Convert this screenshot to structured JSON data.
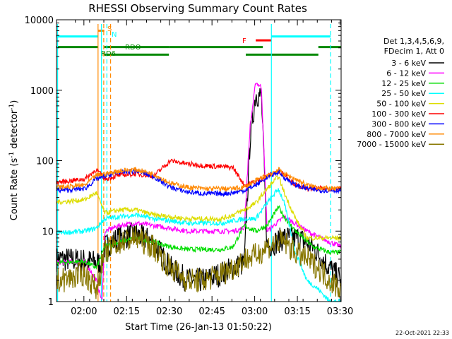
{
  "chart_data": {
    "type": "line",
    "title": "RHESSI Observing Summary Count Rates",
    "xlabel": "Start Time (26-Jan-13 01:50:22)",
    "ylabel_main": "Count Rate (s",
    "ylabel_sup1": "-1",
    "ylabel_mid": " detector",
    "ylabel_sup2": "-1",
    "ylabel_end": ")",
    "yscale": "log",
    "ylim": [
      1,
      10000
    ],
    "xlim_min": [
      0,
      100
    ],
    "y_ticks": [
      {
        "v": 1,
        "label": "1"
      },
      {
        "v": 10,
        "label": "10"
      },
      {
        "v": 100,
        "label": "100"
      },
      {
        "v": 1000,
        "label": "1000"
      },
      {
        "v": 10000,
        "label": "10000"
      }
    ],
    "x_ticks": [
      {
        "t": 9.63,
        "label": "02:00"
      },
      {
        "t": 24.63,
        "label": "02:15"
      },
      {
        "t": 39.63,
        "label": "02:30"
      },
      {
        "t": 54.63,
        "label": "02:45"
      },
      {
        "t": 69.63,
        "label": "03:00"
      },
      {
        "t": 84.63,
        "label": "03:15"
      },
      {
        "t": 99.63,
        "label": "03:30"
      }
    ],
    "legend_header": [
      "Det 1,3,4,5,6,9,",
      "FDecim 1, Att 0"
    ],
    "series": [
      {
        "name": "3 - 6 keV",
        "color": "#000000",
        "gap": 1,
        "pts": [
          [
            2,
            4
          ],
          [
            10,
            3.8
          ],
          [
            16,
            3.5
          ],
          [
            17,
            6
          ],
          [
            22,
            8
          ],
          [
            28,
            9
          ],
          [
            34,
            7
          ],
          [
            40,
            3
          ],
          [
            46,
            2
          ],
          [
            52,
            2
          ],
          [
            58,
            2.5
          ],
          [
            62,
            3
          ],
          [
            66,
            3.5
          ],
          [
            68,
            200
          ],
          [
            70,
            900
          ],
          [
            72,
            800
          ],
          [
            74,
            6
          ],
          [
            80,
            8
          ],
          [
            85,
            8
          ],
          [
            90,
            6
          ],
          [
            96,
            3
          ],
          [
            100,
            2
          ]
        ]
      },
      {
        "name": "6 - 12 keV",
        "color": "#ff00ff",
        "gap": 0,
        "pts": [
          [
            2,
            3.6
          ],
          [
            10,
            3.7
          ],
          [
            14,
            2
          ],
          [
            16,
            1
          ],
          [
            17,
            10
          ],
          [
            22,
            12
          ],
          [
            28,
            13
          ],
          [
            34,
            12
          ],
          [
            40,
            11
          ],
          [
            46,
            10
          ],
          [
            52,
            10
          ],
          [
            58,
            10
          ],
          [
            62,
            10
          ],
          [
            66,
            11
          ],
          [
            68,
            300
          ],
          [
            70,
            1300
          ],
          [
            72,
            1100
          ],
          [
            74,
            10
          ],
          [
            80,
            16
          ],
          [
            85,
            12
          ],
          [
            90,
            9
          ],
          [
            96,
            7
          ],
          [
            100,
            6
          ]
        ]
      },
      {
        "name": "12 - 25 keV",
        "color": "#00dd00",
        "gap": 0,
        "pts": [
          [
            2,
            3.6
          ],
          [
            10,
            3.7
          ],
          [
            14,
            3
          ],
          [
            17,
            6
          ],
          [
            22,
            7
          ],
          [
            28,
            8
          ],
          [
            34,
            7
          ],
          [
            40,
            6
          ],
          [
            46,
            5.5
          ],
          [
            52,
            5.5
          ],
          [
            58,
            5.5
          ],
          [
            62,
            6
          ],
          [
            66,
            12
          ],
          [
            70,
            10
          ],
          [
            74,
            12
          ],
          [
            78,
            22
          ],
          [
            80,
            16
          ],
          [
            84,
            10
          ],
          [
            90,
            6
          ],
          [
            96,
            5
          ],
          [
            100,
            5
          ]
        ]
      },
      {
        "name": "25 - 50 keV",
        "color": "#00ffff",
        "gap": 0,
        "pts": [
          [
            2,
            9.5
          ],
          [
            10,
            10
          ],
          [
            14,
            11
          ],
          [
            17,
            15
          ],
          [
            22,
            16
          ],
          [
            28,
            17
          ],
          [
            34,
            15
          ],
          [
            40,
            14
          ],
          [
            46,
            13
          ],
          [
            52,
            13
          ],
          [
            58,
            13
          ],
          [
            62,
            14
          ],
          [
            66,
            15
          ],
          [
            70,
            15
          ],
          [
            74,
            25
          ],
          [
            78,
            40
          ],
          [
            80,
            25
          ],
          [
            84,
            5
          ],
          [
            88,
            2
          ],
          [
            92,
            1.5
          ],
          [
            96,
            1
          ],
          [
            100,
            1
          ]
        ]
      },
      {
        "name": "50 - 100 keV",
        "color": "#dddd00",
        "gap": 0,
        "pts": [
          [
            2,
            26
          ],
          [
            10,
            28
          ],
          [
            14,
            35
          ],
          [
            17,
            18
          ],
          [
            22,
            20
          ],
          [
            28,
            20
          ],
          [
            34,
            17
          ],
          [
            40,
            16
          ],
          [
            46,
            15
          ],
          [
            52,
            15
          ],
          [
            58,
            15
          ],
          [
            62,
            17
          ],
          [
            66,
            20
          ],
          [
            70,
            25
          ],
          [
            74,
            40
          ],
          [
            78,
            60
          ],
          [
            80,
            35
          ],
          [
            84,
            15
          ],
          [
            88,
            8
          ],
          [
            92,
            8
          ],
          [
            96,
            8
          ],
          [
            100,
            8
          ]
        ]
      },
      {
        "name": "100 - 300 keV",
        "color": "#ff0000",
        "gap": 0,
        "pts": [
          [
            2,
            50
          ],
          [
            10,
            55
          ],
          [
            14,
            75
          ],
          [
            17,
            55
          ],
          [
            22,
            62
          ],
          [
            28,
            65
          ],
          [
            34,
            60
          ],
          [
            40,
            100
          ],
          [
            46,
            90
          ],
          [
            52,
            85
          ],
          [
            58,
            82
          ],
          [
            62,
            80
          ],
          [
            66,
            45
          ],
          [
            70,
            50
          ],
          [
            74,
            60
          ],
          [
            78,
            70
          ],
          [
            80,
            65
          ],
          [
            84,
            45
          ],
          [
            88,
            40
          ],
          [
            92,
            40
          ],
          [
            96,
            40
          ],
          [
            100,
            40
          ]
        ]
      },
      {
        "name": "300 - 800 keV",
        "color": "#0000ff",
        "gap": 0,
        "pts": [
          [
            2,
            38
          ],
          [
            10,
            40
          ],
          [
            14,
            55
          ],
          [
            17,
            60
          ],
          [
            22,
            68
          ],
          [
            28,
            72
          ],
          [
            34,
            60
          ],
          [
            40,
            42
          ],
          [
            46,
            36
          ],
          [
            52,
            34
          ],
          [
            58,
            34
          ],
          [
            62,
            35
          ],
          [
            66,
            38
          ],
          [
            70,
            45
          ],
          [
            74,
            58
          ],
          [
            78,
            70
          ],
          [
            80,
            58
          ],
          [
            84,
            45
          ],
          [
            88,
            40
          ],
          [
            92,
            38
          ],
          [
            96,
            38
          ],
          [
            100,
            38
          ]
        ]
      },
      {
        "name": "800 - 7000 keV",
        "color": "#ff8800",
        "gap": 0,
        "pts": [
          [
            2,
            42
          ],
          [
            10,
            45
          ],
          [
            14,
            62
          ],
          [
            17,
            65
          ],
          [
            22,
            72
          ],
          [
            28,
            75
          ],
          [
            34,
            65
          ],
          [
            40,
            48
          ],
          [
            46,
            42
          ],
          [
            52,
            40
          ],
          [
            58,
            40
          ],
          [
            62,
            40
          ],
          [
            66,
            42
          ],
          [
            70,
            52
          ],
          [
            74,
            62
          ],
          [
            78,
            75
          ],
          [
            80,
            65
          ],
          [
            84,
            55
          ],
          [
            88,
            45
          ],
          [
            92,
            42
          ],
          [
            96,
            40
          ],
          [
            100,
            40
          ]
        ]
      },
      {
        "name": "7000 - 15000 keV",
        "color": "#887700",
        "gap": 1,
        "pts": [
          [
            2,
            2
          ],
          [
            10,
            2.5
          ],
          [
            14,
            1.5
          ],
          [
            17,
            5
          ],
          [
            22,
            7
          ],
          [
            28,
            8
          ],
          [
            34,
            6
          ],
          [
            40,
            3
          ],
          [
            46,
            2
          ],
          [
            52,
            2
          ],
          [
            58,
            2.5
          ],
          [
            62,
            3
          ],
          [
            66,
            4
          ],
          [
            70,
            4.5
          ],
          [
            74,
            6
          ],
          [
            78,
            7
          ],
          [
            80,
            7
          ],
          [
            84,
            5
          ],
          [
            88,
            4
          ],
          [
            92,
            3
          ],
          [
            96,
            2
          ],
          [
            100,
            1.5
          ]
        ]
      }
    ],
    "flag_labels": {
      "s": "S",
      "n": "N",
      "f": "F",
      "rdo": "RDO",
      "rd6": "RD6"
    },
    "flags": {
      "saa": {
        "color": "#00ffff",
        "level": 5800,
        "segs": [
          [
            0,
            14.6
          ],
          [
            75.5,
            96.3
          ]
        ]
      },
      "s_bar": {
        "color": "#ff8800",
        "level": 7000,
        "segs": [
          [
            14.6,
            16.8
          ]
        ]
      },
      "f_bar": {
        "color": "#ff0000",
        "level": 5100,
        "segs": [
          [
            70.0,
            75.5
          ]
        ]
      },
      "rdo_top": {
        "color": "#008800",
        "level": 4100,
        "segs": [
          [
            0,
            14.6
          ],
          [
            16.8,
            39.5
          ],
          [
            39.5,
            72.5
          ],
          [
            92,
            100
          ]
        ]
      },
      "rdo_bot": {
        "color": "#008800",
        "level": 3200,
        "segs": [
          [
            16.8,
            39.5
          ],
          [
            66.5,
            92
          ]
        ]
      }
    },
    "vlines": [
      {
        "t": 14.6,
        "color": "#ff8800",
        "dash": false
      },
      {
        "t": 16.6,
        "color": "#ff8800",
        "dash": true
      },
      {
        "t": 19.0,
        "color": "#ff8800",
        "dash": true
      },
      {
        "t": 15.8,
        "color": "#00ffff",
        "dash": false
      },
      {
        "t": 17.7,
        "color": "#00ffff",
        "dash": true
      },
      {
        "t": 75.5,
        "color": "#00ffff",
        "dash": false
      },
      {
        "t": 96.3,
        "color": "#00ffff",
        "dash": true
      },
      {
        "t": 0.4,
        "color": "#00ffff",
        "dash": false
      }
    ],
    "timestamp": "22-Oct-2021 22:33"
  }
}
